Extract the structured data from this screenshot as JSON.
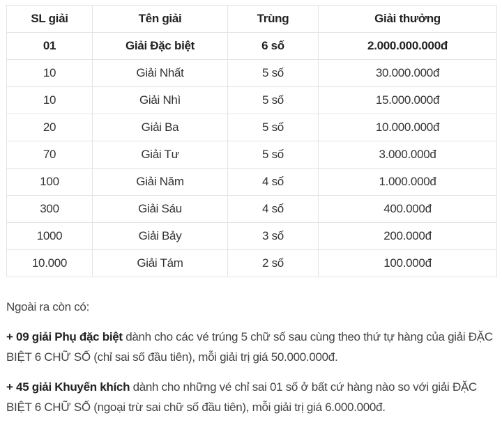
{
  "table": {
    "headers": [
      "SL giải",
      "Tên giải",
      "Trùng",
      "Giải thưởng"
    ],
    "rows": [
      [
        "01",
        "Giải Đặc biệt",
        "6 số",
        "2.000.000.000đ"
      ],
      [
        "10",
        "Giải Nhất",
        "5 số",
        "30.000.000đ"
      ],
      [
        "10",
        "Giải Nhì",
        "5 số",
        "15.000.000đ"
      ],
      [
        "20",
        "Giải Ba",
        "5 số",
        "10.000.000đ"
      ],
      [
        "70",
        "Giải Tư",
        "5 số",
        "3.000.000đ"
      ],
      [
        "100",
        "Giải Năm",
        "4 số",
        "1.000.000đ"
      ],
      [
        "300",
        "Giải Sáu",
        "4 số",
        "400.000đ"
      ],
      [
        "1000",
        "Giải Bảy",
        "3 số",
        "200.000đ"
      ],
      [
        "10.000",
        "Giải Tám",
        "2 số",
        "100.000đ"
      ]
    ]
  },
  "notes": {
    "intro": "Ngoài ra còn có:",
    "items": [
      {
        "bold": "+ 09 giải Phụ đặc biệt",
        "text": " dành cho các vé trúng 5 chữ số sau cùng theo thứ tự hàng của giải ĐẶC BIỆT 6 CHỮ SỐ (chỉ sai số đầu tiên), mỗi giải trị giá 50.000.000đ."
      },
      {
        "bold": "+ 45 giải Khuyến khích",
        "text": " dành cho những vé chỉ sai 01 số ở bất cứ hàng nào so với giải ĐẶC BIỆT 6 CHỮ SỐ (ngoại trừ sai chữ số đầu tiên), mỗi giải trị giá 6.000.000đ."
      }
    ]
  }
}
